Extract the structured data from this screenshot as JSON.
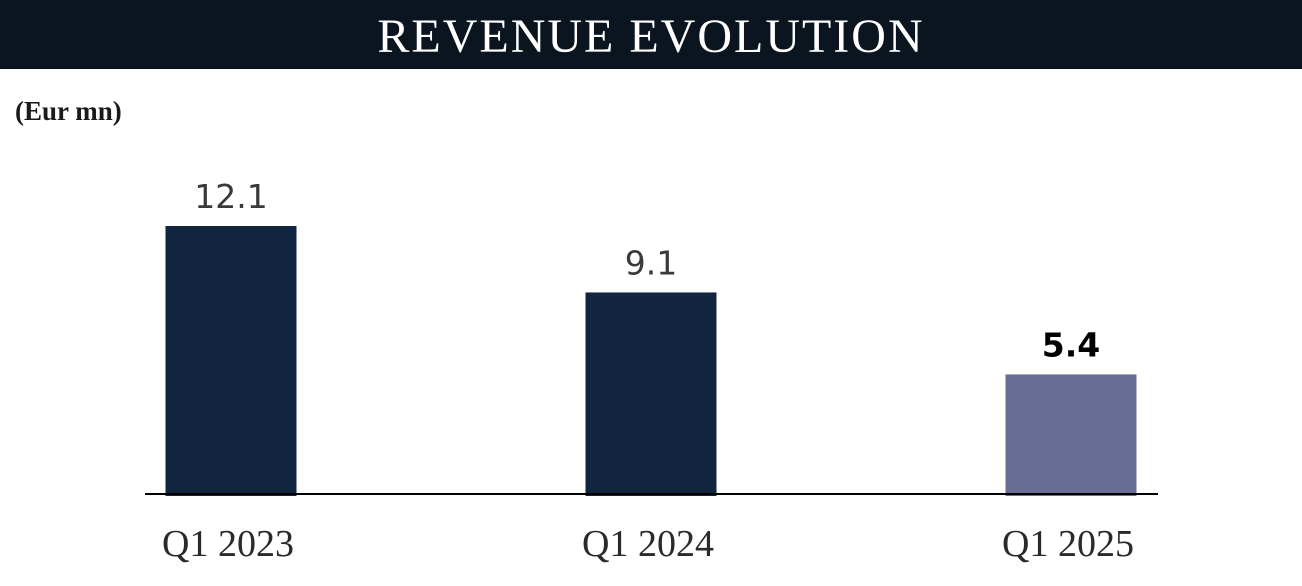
{
  "header": {
    "title": "REVENUE EVOLUTION"
  },
  "unit": "(Eur mn)",
  "colors": {
    "header_bg": "#0b1520",
    "bar_primary": "#12253f",
    "bar_highlight": "#696e94"
  },
  "chart_data": {
    "type": "bar",
    "categories": [
      "Q1 2023",
      "Q1 2024",
      "Q1 2025"
    ],
    "values": [
      12.1,
      9.1,
      5.4
    ],
    "value_labels": [
      "12.1",
      "9.1",
      "5.4"
    ],
    "highlight_index": 2,
    "ylabel": "(Eur mn)",
    "ylim": [
      0,
      12.1
    ],
    "grid": false,
    "legend": "none"
  }
}
